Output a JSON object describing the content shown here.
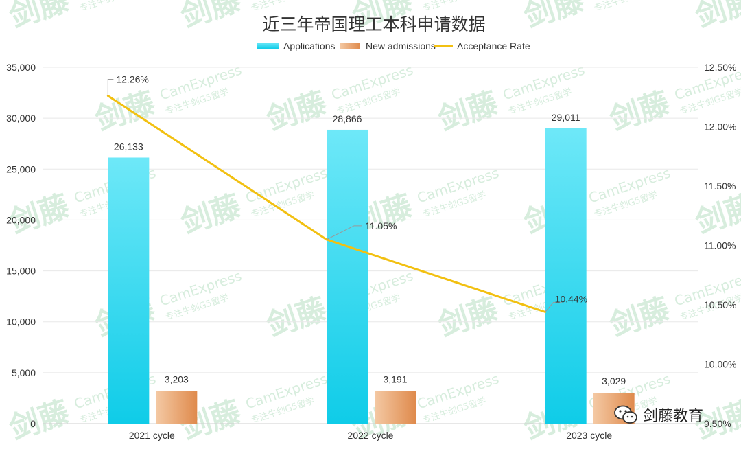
{
  "chart_data": {
    "type": "bar",
    "title": "近三年帝国理工本科申请数据",
    "categories": [
      "2021 cycle",
      "2022 cycle",
      "2023 cycle"
    ],
    "series": [
      {
        "name": "Applications",
        "kind": "bar",
        "axis": "left",
        "values": [
          26133,
          28866,
          29011
        ],
        "labels": [
          "26,133",
          "28,866",
          "29,011"
        ]
      },
      {
        "name": "New admissions",
        "kind": "bar",
        "axis": "left",
        "values": [
          3203,
          3191,
          3029
        ],
        "labels": [
          "3,203",
          "3,191",
          "3,029"
        ]
      },
      {
        "name": "Acceptance Rate",
        "kind": "line",
        "axis": "right",
        "values": [
          12.26,
          11.05,
          10.44
        ],
        "labels": [
          "12.26%",
          "11.05%",
          "10.44%"
        ]
      }
    ],
    "left_axis": {
      "ylim": [
        0,
        35000
      ],
      "ticks": [
        "0",
        "5,000",
        "10,000",
        "15,000",
        "20,000",
        "25,000",
        "30,000",
        "35,000"
      ]
    },
    "right_axis": {
      "ylim": [
        9.5,
        12.5
      ],
      "ticks": [
        "9.50%",
        "10.00%",
        "10.50%",
        "11.00%",
        "11.50%",
        "12.00%",
        "12.50%"
      ]
    },
    "grid": true,
    "legend_position": "top"
  },
  "colors": {
    "applications_top": "#6ee8f8",
    "applications_bottom": "#0fcce8",
    "admissions_light": "#f4c9a4",
    "admissions_dark": "#df8a4c",
    "line": "#f2c011",
    "grid": "#e8e8e8",
    "watermark": "#b7dfc3"
  },
  "watermark": {
    "brand_cn": "剑藤",
    "brand_en": "CamExpress",
    "tagline": "专注牛剑G5留学"
  },
  "brand": {
    "label": "剑藤教育",
    "icon": "wechat-icon"
  }
}
